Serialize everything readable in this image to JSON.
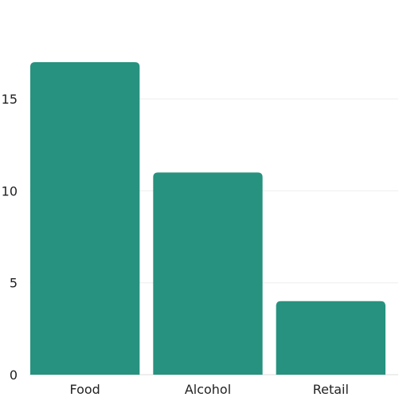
{
  "chart_data": {
    "type": "bar",
    "categories": [
      "Food",
      "Alcohol",
      "Retail"
    ],
    "values": [
      17,
      11,
      4
    ],
    "y_ticks": [
      0,
      5,
      10,
      15
    ],
    "ylim": [
      0,
      17
    ],
    "grid": true,
    "bar_color": "#26927F",
    "title": "",
    "xlabel": "",
    "ylabel": ""
  }
}
